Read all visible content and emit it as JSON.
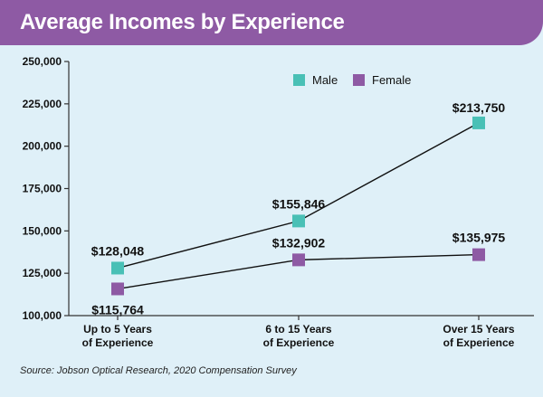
{
  "header": {
    "title": "Average Incomes by Experience"
  },
  "source": "Source: Jobson Optical Research, 2020 Compensation Survey",
  "colors": {
    "header": "#8e5aa4",
    "background": "#dff0f8",
    "male": "#49c0b6",
    "female": "#8e5aa4"
  },
  "chart_data": {
    "type": "line",
    "title": "Average Incomes by Experience",
    "categories": [
      [
        "Up to 5 Years",
        "of Experience"
      ],
      [
        "6 to 15 Years",
        "of Experience"
      ],
      [
        "Over 15 Years",
        "of Experience"
      ]
    ],
    "series": [
      {
        "name": "Male",
        "color": "#49c0b6",
        "values": [
          128048,
          155846,
          213750
        ],
        "labels": [
          "$128,048",
          "$155,846",
          "$213,750"
        ]
      },
      {
        "name": "Female",
        "color": "#8e5aa4",
        "values": [
          115764,
          132902,
          135975
        ],
        "labels": [
          "$115,764",
          "$132,902",
          "$135,975"
        ]
      }
    ],
    "ylim": [
      100000,
      250000
    ],
    "yticks": [
      100000,
      125000,
      150000,
      175000,
      200000,
      225000,
      250000
    ],
    "ytick_labels": [
      "100,000",
      "125,000",
      "150,000",
      "175,000",
      "200,000",
      "225,000",
      "250,000"
    ],
    "grid": false,
    "legend": "top-right"
  }
}
